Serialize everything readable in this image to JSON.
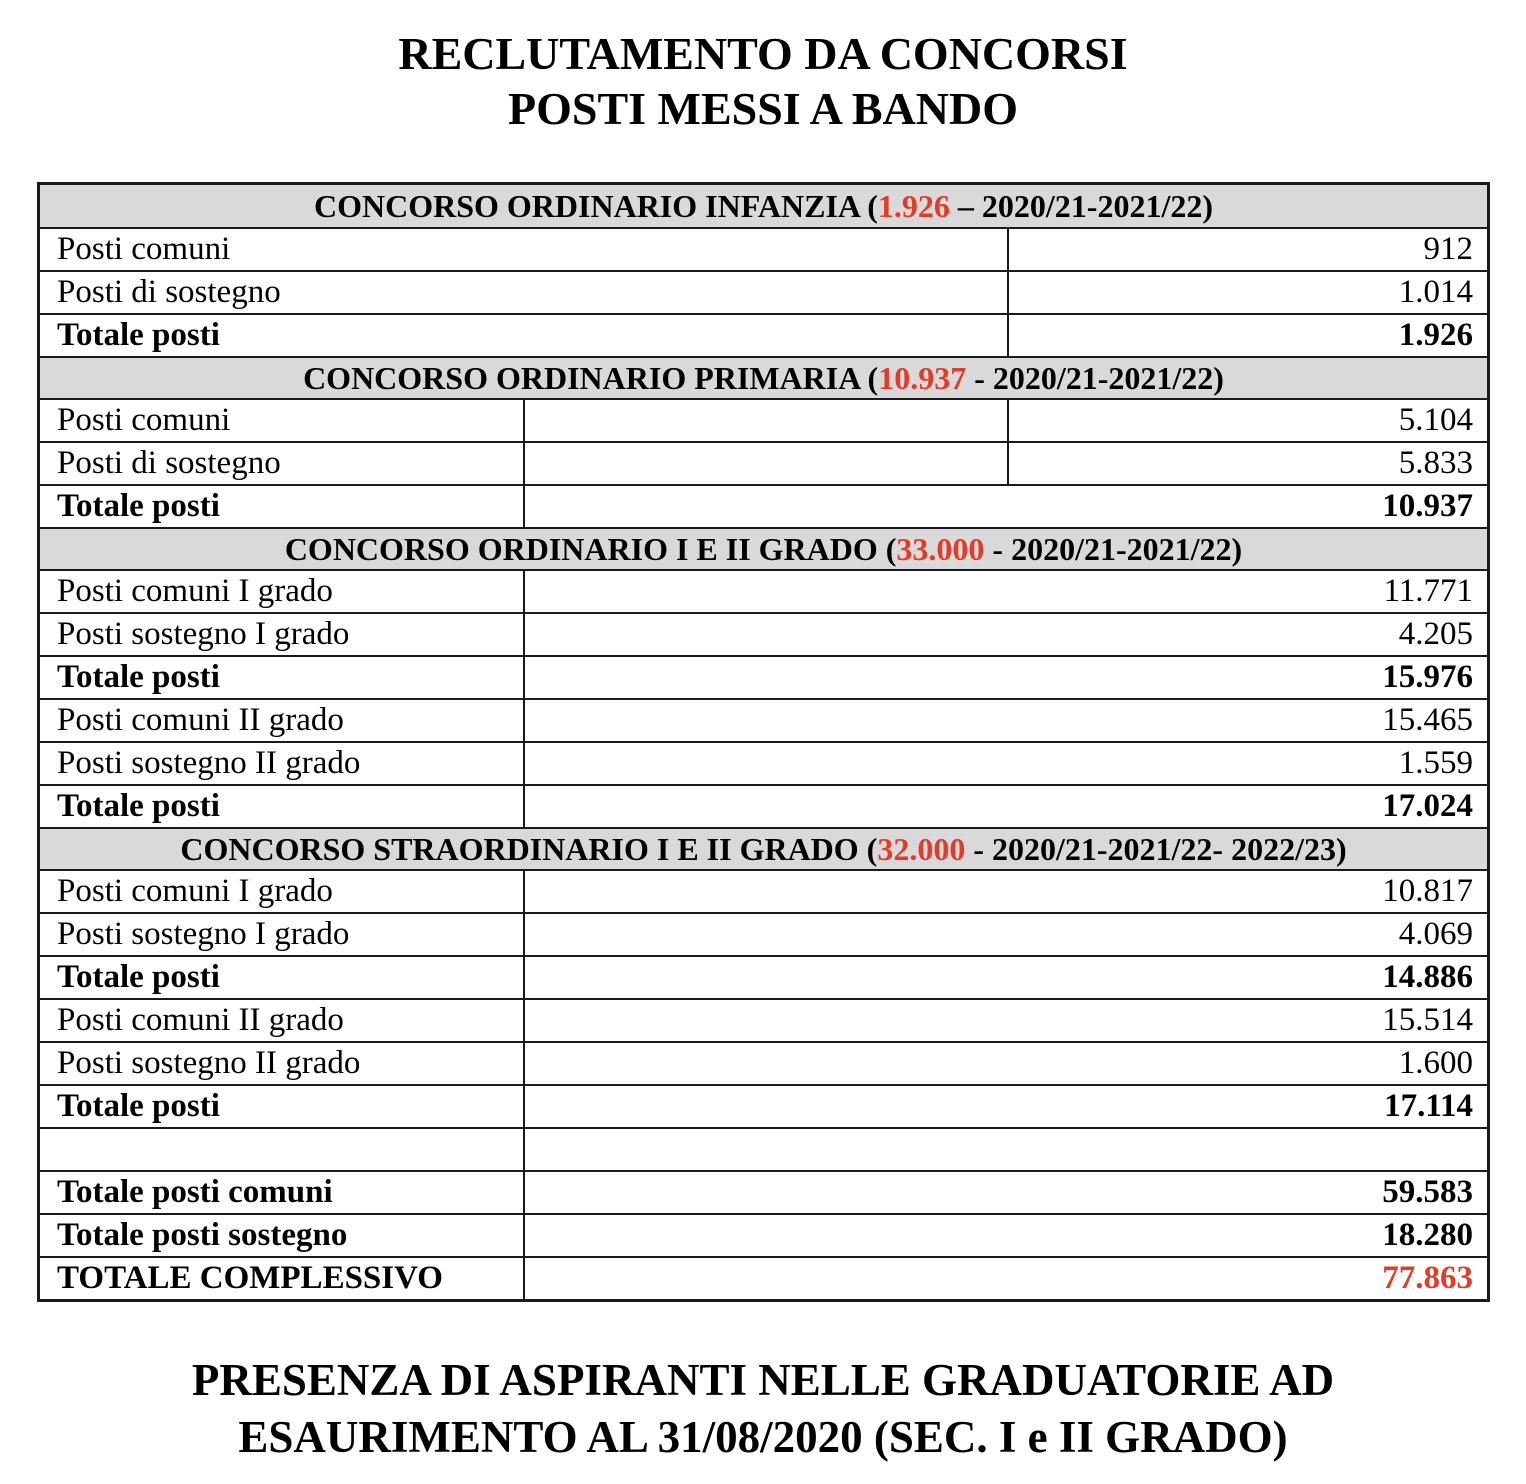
{
  "title": {
    "line1": "RECLUTAMENTO DA CONCORSI",
    "line2": "POSTI MESSI A BANDO"
  },
  "footer": {
    "line1": "PRESENZA DI ASPIRANTI NELLE GRADUATORIE AD",
    "line2": "ESAURIMENTO AL 31/08/2020 (SEC. I e II GRADO)"
  },
  "colors": {
    "accent_red": "#e23b2a",
    "section_bg": "#d9d9d9",
    "border": "#1a1a1a"
  },
  "table": {
    "rows": [
      {
        "type": "section",
        "text_before": "CONCORSO ORDINARIO INFANZIA (",
        "highlight": "1.926",
        "text_after": " – 2020/21-2021/22)"
      },
      {
        "type": "data",
        "layout": "wide-label",
        "label": "Posti comuni",
        "value": "912",
        "bold": false
      },
      {
        "type": "data",
        "layout": "wide-label",
        "label": "Posti di sostegno",
        "value": "1.014",
        "bold": false
      },
      {
        "type": "data",
        "layout": "wide-label",
        "label": "Totale posti",
        "value": "1.926",
        "bold": true
      },
      {
        "type": "section",
        "text_before": "CONCORSO ORDINARIO PRIMARIA (",
        "highlight": "10.937",
        "text_after": " - 2020/21-2021/22)"
      },
      {
        "type": "data",
        "layout": "three-col",
        "label": "Posti comuni",
        "value": "5.104",
        "bold": false
      },
      {
        "type": "data",
        "layout": "three-col",
        "label": "Posti di sostegno",
        "value": "5.833",
        "bold": false
      },
      {
        "type": "data",
        "layout": "narrow-label",
        "label": "Totale posti",
        "value": "10.937",
        "bold": true
      },
      {
        "type": "section",
        "text_before": "CONCORSO ORDINARIO I E II GRADO (",
        "highlight": "33.000",
        "text_after": " - 2020/21-2021/22)"
      },
      {
        "type": "data",
        "layout": "narrow-label",
        "label": "Posti comuni I grado",
        "value": "11.771",
        "bold": false
      },
      {
        "type": "data",
        "layout": "narrow-label",
        "label": "Posti sostegno I grado",
        "value": "4.205",
        "bold": false
      },
      {
        "type": "data",
        "layout": "narrow-label",
        "label": "Totale posti",
        "value": "15.976",
        "bold": true
      },
      {
        "type": "data",
        "layout": "narrow-label",
        "label": "Posti comuni II grado",
        "value": "15.465",
        "bold": false
      },
      {
        "type": "data",
        "layout": "narrow-label",
        "label": "Posti sostegno II grado",
        "value": "1.559",
        "bold": false
      },
      {
        "type": "data",
        "layout": "narrow-label",
        "label": "Totale posti",
        "value": "17.024",
        "bold": true
      },
      {
        "type": "section",
        "text_before": "CONCORSO STRAORDINARIO I E II GRADO (",
        "highlight": "32.000",
        "text_after": " - 2020/21-2021/22- 2022/23)"
      },
      {
        "type": "data",
        "layout": "narrow-label",
        "label": "Posti comuni I grado",
        "value": "10.817",
        "bold": false
      },
      {
        "type": "data",
        "layout": "narrow-label",
        "label": "Posti sostegno I grado",
        "value": "4.069",
        "bold": false
      },
      {
        "type": "data",
        "layout": "narrow-label",
        "label": "Totale posti",
        "value": "14.886",
        "bold": true
      },
      {
        "type": "data",
        "layout": "narrow-label",
        "label": "Posti comuni II grado",
        "value": "15.514",
        "bold": false
      },
      {
        "type": "data",
        "layout": "narrow-label",
        "label": "Posti sostegno II grado",
        "value": "1.600",
        "bold": false
      },
      {
        "type": "data",
        "layout": "narrow-label",
        "label": "Totale posti",
        "value": "17.114",
        "bold": true
      },
      {
        "type": "empty",
        "layout": "narrow-label",
        "label": "",
        "value": "",
        "bold": false
      },
      {
        "type": "data",
        "layout": "narrow-label",
        "label": "Totale posti comuni",
        "value": "59.583",
        "bold": true
      },
      {
        "type": "data",
        "layout": "narrow-label",
        "label": "Totale posti sostegno",
        "value": "18.280",
        "bold": true
      },
      {
        "type": "data",
        "layout": "narrow-label",
        "label": "TOTALE COMPLESSIVO",
        "value": "77.863",
        "bold": true,
        "value_red": true
      }
    ]
  }
}
